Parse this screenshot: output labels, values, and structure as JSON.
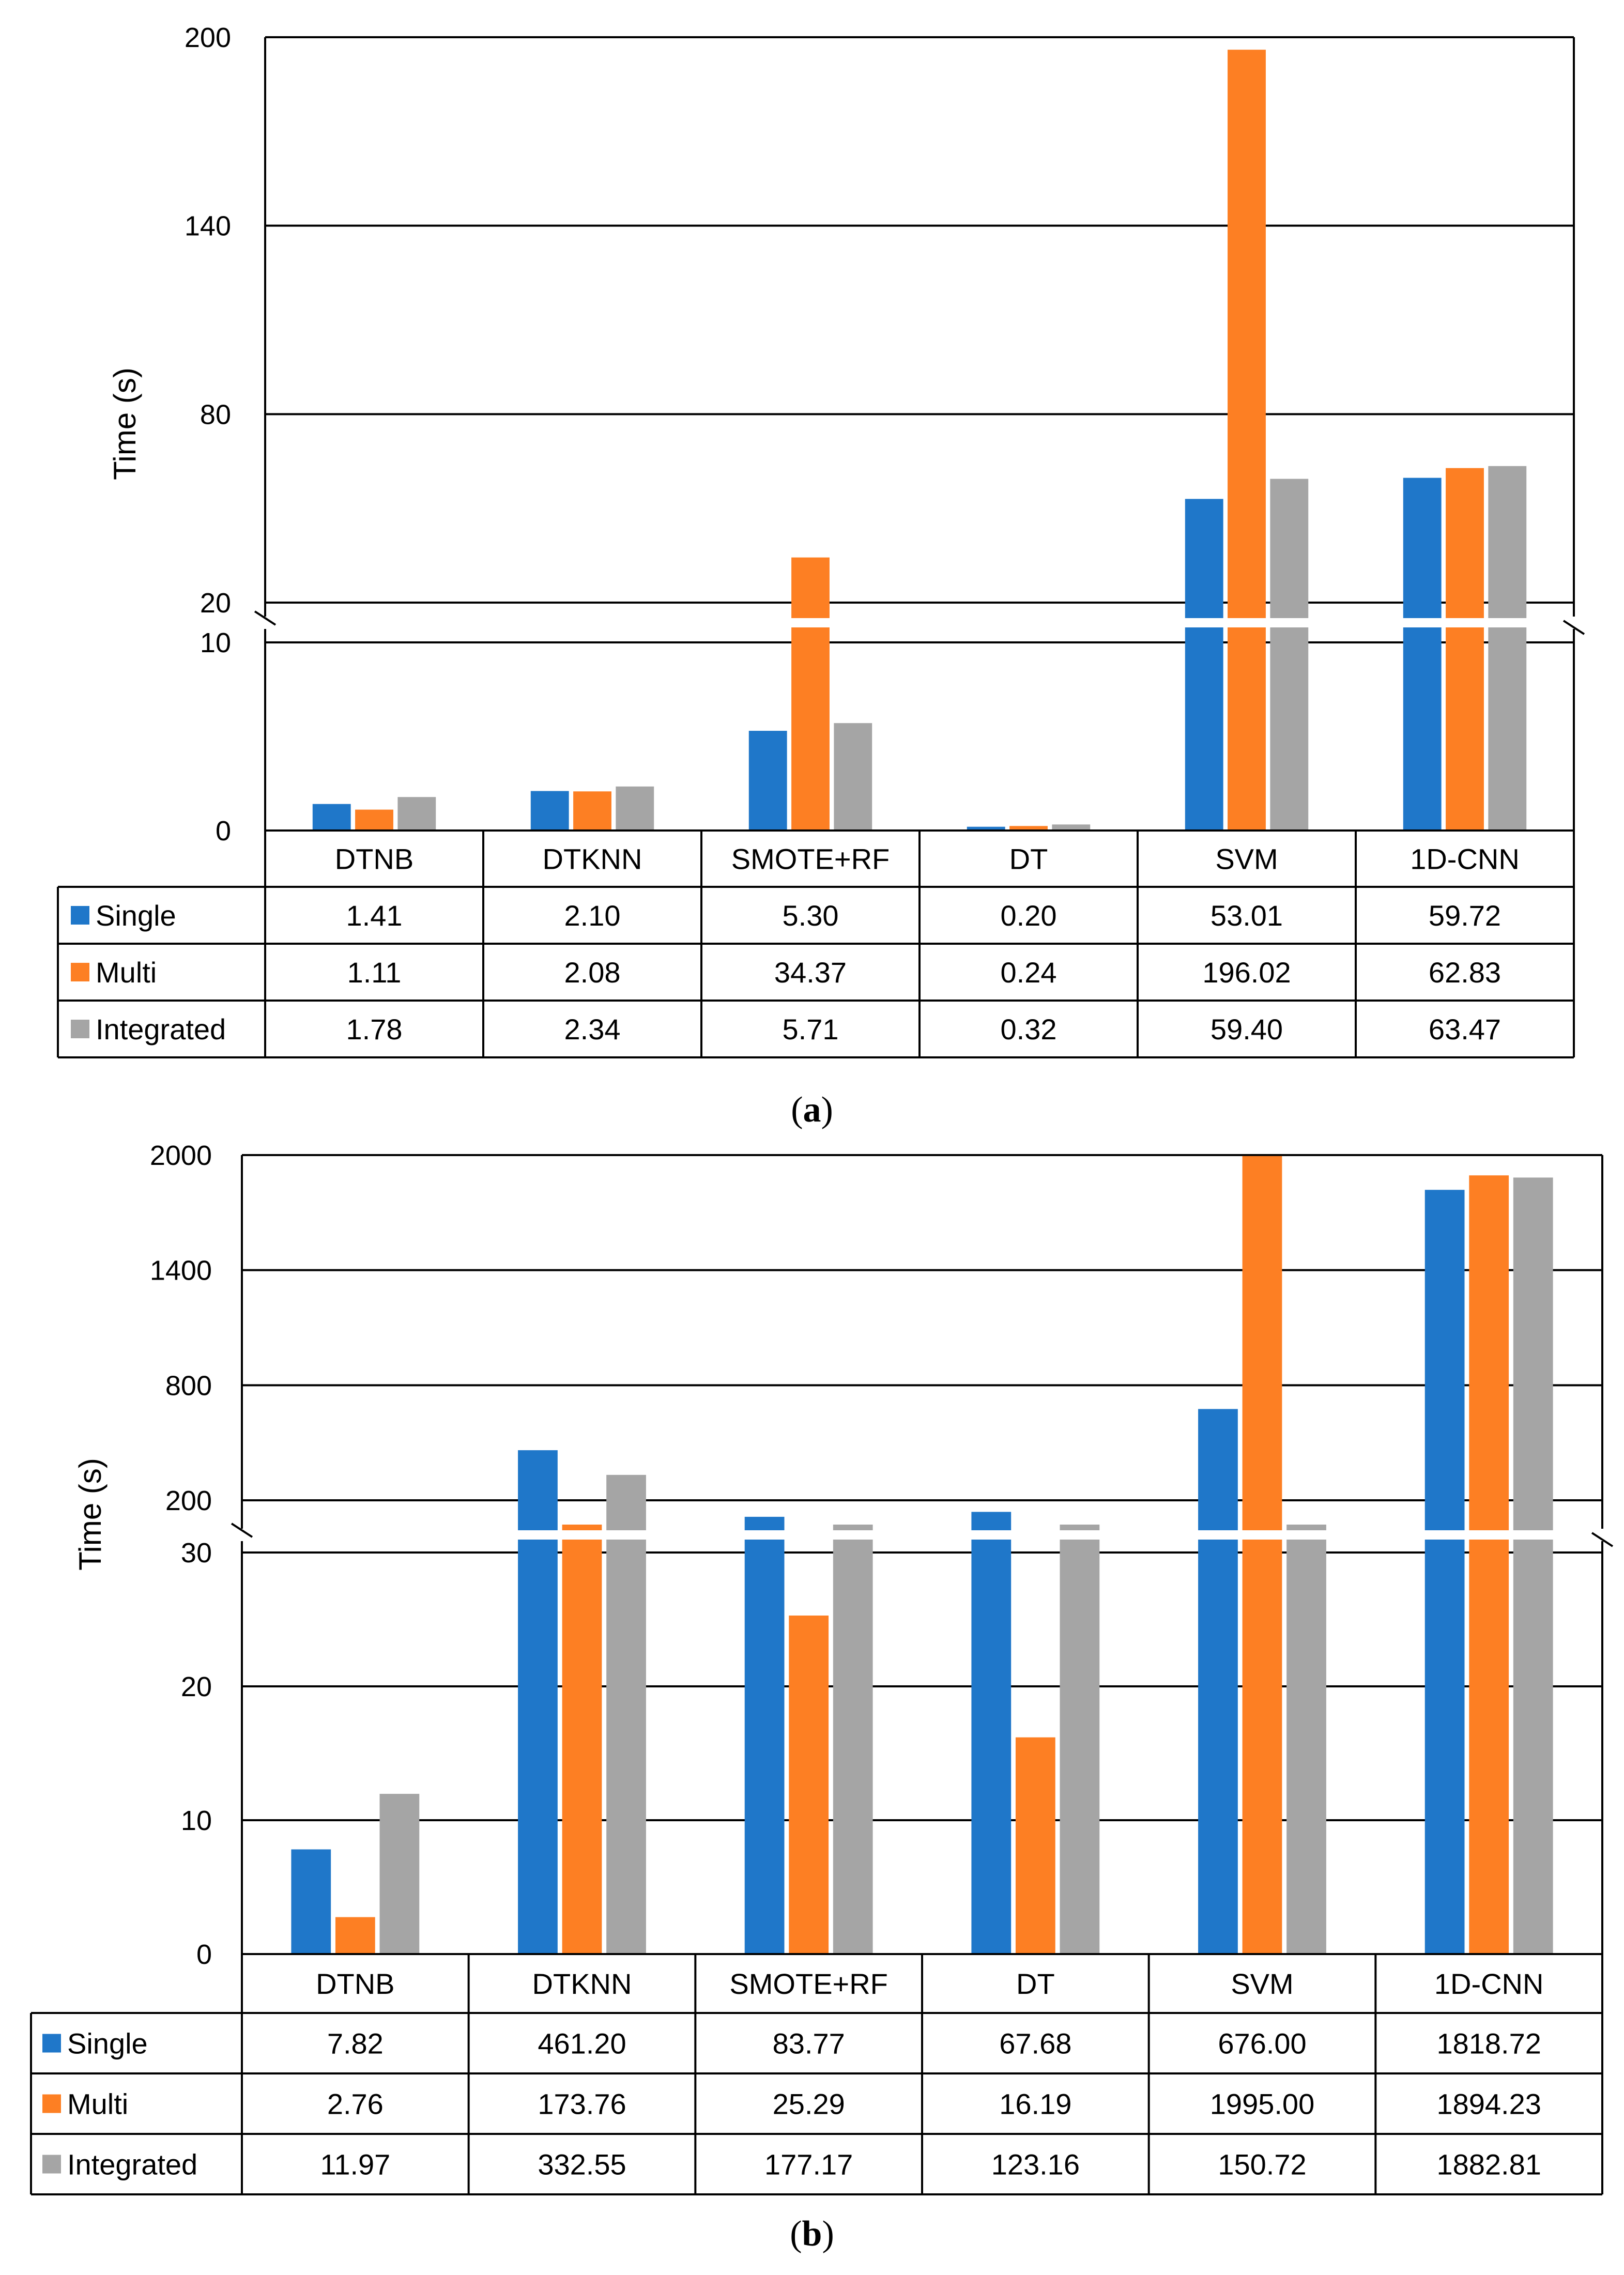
{
  "colors": {
    "single": "#1f77c9",
    "multi": "#fd7f23",
    "integrated": "#a5a5a5"
  },
  "chart_data": [
    {
      "type": "bar",
      "title": "",
      "caption_label": "a",
      "ylabel": "Time (s)",
      "xlabel": "",
      "broken_axis": true,
      "ylim_lower": [
        0,
        10
      ],
      "ylim_upper": [
        20,
        200
      ],
      "yticks_lower": [
        "0",
        "10"
      ],
      "yticks_upper": [
        "20",
        "80",
        "140",
        "200"
      ],
      "grid": true,
      "categories": [
        "DTNB",
        "DTKNN",
        "SMOTE+RF",
        "DT",
        "SVM",
        "1D-CNN"
      ],
      "series": [
        {
          "name": "Single",
          "values": [
            1.41,
            2.1,
            5.3,
            0.2,
            53.01,
            59.72
          ],
          "labels": [
            "1.41",
            "2.10",
            "5.30",
            "0.20",
            "53.01",
            "59.72"
          ]
        },
        {
          "name": "Multi",
          "values": [
            1.11,
            2.08,
            34.37,
            0.24,
            196.02,
            62.83
          ],
          "labels": [
            "1.11",
            "2.08",
            "34.37",
            "0.24",
            "196.02",
            "62.83"
          ]
        },
        {
          "name": "Integrated",
          "values": [
            1.78,
            2.34,
            5.71,
            0.32,
            59.4,
            63.47
          ],
          "labels": [
            "1.78",
            "2.34",
            "5.71",
            "0.32",
            "59.40",
            "63.47"
          ]
        }
      ]
    },
    {
      "type": "bar",
      "title": "",
      "caption_label": "b",
      "ylabel": "Time (s)",
      "xlabel": "",
      "broken_axis": true,
      "ylim_lower": [
        0,
        30
      ],
      "ylim_upper": [
        200,
        2000
      ],
      "yticks_lower": [
        "0",
        "10",
        "20",
        "30"
      ],
      "yticks_upper": [
        "200",
        "800",
        "1400",
        "2000"
      ],
      "grid": true,
      "categories": [
        "DTNB",
        "DTKNN",
        "SMOTE+RF",
        "DT",
        "SVM",
        "1D-CNN"
      ],
      "series": [
        {
          "name": "Single",
          "values": [
            7.82,
            461.2,
            83.77,
            67.68,
            676.0,
            1818.72
          ],
          "labels": [
            "7.82",
            "461.20",
            "83.77",
            "67.68",
            "676.00",
            "1818.72"
          ]
        },
        {
          "name": "Multi",
          "values": [
            2.76,
            173.76,
            25.29,
            16.19,
            1995.0,
            1894.23
          ],
          "labels": [
            "2.76",
            "173.76",
            "25.29",
            "16.19",
            "1995.00",
            "1894.23"
          ]
        },
        {
          "name": "Integrated",
          "values": [
            11.97,
            332.55,
            177.17,
            123.16,
            150.72,
            1882.81
          ],
          "labels": [
            "11.97",
            "332.55",
            "177.17",
            "123.16",
            "150.72",
            "1882.81"
          ]
        }
      ]
    }
  ]
}
